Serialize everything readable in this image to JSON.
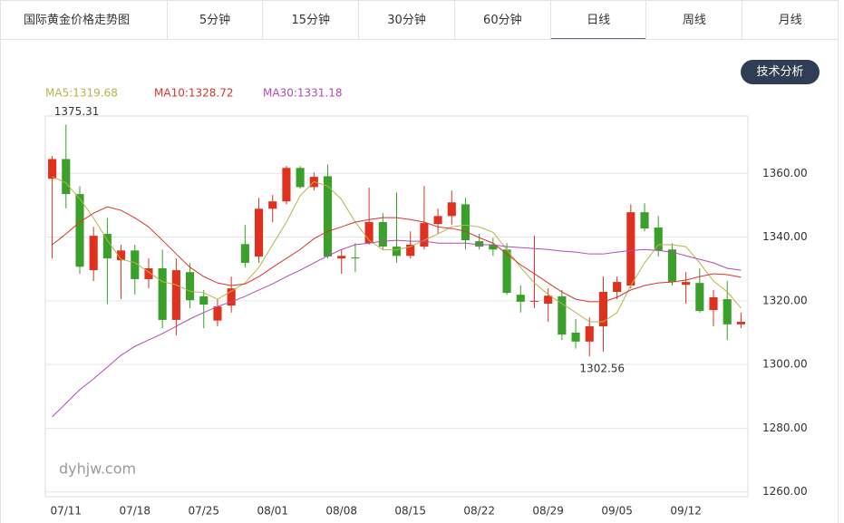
{
  "header_title": "国际黄金价格走势图",
  "tabs": [
    "5分钟",
    "15分钟",
    "30分钟",
    "60分钟",
    "日线",
    "周线",
    "月线"
  ],
  "button": "技术分析",
  "watermark": "dyhjw.com",
  "chart_data": {
    "type": "candlestick",
    "categories": [
      null,
      "07/11",
      null,
      null,
      null,
      null,
      "07/18",
      null,
      null,
      null,
      null,
      "07/25",
      null,
      null,
      null,
      null,
      "08/01",
      null,
      null,
      null,
      null,
      "08/08",
      null,
      null,
      null,
      null,
      "08/15",
      null,
      null,
      null,
      null,
      "08/22",
      null,
      null,
      null,
      null,
      "08/29",
      null,
      null,
      null,
      null,
      "09/05",
      null,
      null,
      null,
      null,
      "09/12",
      null,
      null,
      null,
      null
    ],
    "open": [
      1358.3,
      1364.5,
      1353.5,
      1329.6,
      1341,
      1332.7,
      1335.8,
      1326.8,
      1330.2,
      1314,
      1329,
      1321.4,
      1313.8,
      1318.5,
      1337.8,
      1333.9,
      1348.9,
      1351.2,
      1361.7,
      1355.7,
      1359.1,
      1333.3,
      1333.6,
      1338.1,
      1344.7,
      1337,
      1334.1,
      1337,
      1344.1,
      1346.6,
      1350.3,
      1338.7,
      1337.6,
      1336.1,
      1321.9,
      1319.7,
      1319.1,
      1321.4,
      1310,
      1307.2,
      1312,
      1322.8,
      1324.8,
      1347.8,
      1343,
      1336.1,
      1325,
      1325.6,
      1317.1,
      1320.5,
      1312.6
    ],
    "high": [
      1365.4,
      1375.31,
      1356,
      1343.2,
      1346,
      1337.6,
      1337.6,
      1333.3,
      1336.1,
      1333.3,
      1331.9,
      1323.4,
      1320.5,
      1327.6,
      1343.8,
      1352.3,
      1353.2,
      1362.3,
      1362.3,
      1360.3,
      1362.8,
      1336.1,
      1338.1,
      1355.5,
      1347.5,
      1354,
      1341.8,
      1356,
      1348.9,
      1354.6,
      1352.3,
      1341,
      1339.8,
      1338.1,
      1324.8,
      1340.4,
      1323.9,
      1323.4,
      1314.3,
      1314.8,
      1327.6,
      1327.6,
      1350.3,
      1350.6,
      1346.6,
      1338.1,
      1329,
      1330.2,
      1323.4,
      1326.2,
      1316.3
    ],
    "low": [
      1333.3,
      1349,
      1328.5,
      1326.2,
      1319,
      1320.5,
      1322,
      1323.9,
      1311.4,
      1309.1,
      1317.7,
      1311.4,
      1312,
      1316.3,
      1330.5,
      1331.9,
      1344.7,
      1350.3,
      1355.2,
      1354.6,
      1333.3,
      1328.5,
      1329,
      1337.6,
      1336.1,
      1331.9,
      1333.3,
      1336.1,
      1341,
      1343.8,
      1336.1,
      1336.1,
      1334.1,
      1321.9,
      1316.3,
      1317.7,
      1313.4,
      1307.7,
      1305,
      1302.56,
      1304,
      1320.5,
      1323.9,
      1341.8,
      1333.9,
      1324.8,
      1319.1,
      1316.3,
      1312,
      1307.7,
      1311.4
    ],
    "close": [
      1364.5,
      1353.5,
      1330.7,
      1340.4,
      1333.3,
      1335.8,
      1326.8,
      1330.2,
      1314,
      1329.6,
      1320.2,
      1318.8,
      1318.2,
      1323.9,
      1331.9,
      1348.9,
      1351.2,
      1361.7,
      1355.7,
      1358.9,
      1333.9,
      1334.1,
      1333.3,
      1344.7,
      1337,
      1334.1,
      1337.6,
      1344.4,
      1346.6,
      1350.9,
      1339,
      1337,
      1336.1,
      1322.5,
      1319.7,
      1320,
      1321.6,
      1309.4,
      1307.2,
      1312,
      1322.8,
      1325.9,
      1347.8,
      1342.7,
      1335.8,
      1325.9,
      1325.9,
      1316.8,
      1321.1,
      1312.6,
      1313.4
    ],
    "up_color": "#e0301e",
    "down_color": "#3aa02b",
    "series": [
      {
        "name": "MA5:1319.68",
        "color": "#b8b44a",
        "values": [
          1359,
          1357,
          1352,
          1346,
          1339,
          1333,
          1332,
          1329,
          1326,
          1325,
          1323,
          1322.5,
          1320.5,
          1323,
          1325.6,
          1330.5,
          1337.6,
          1344.7,
          1353,
          1357.4,
          1356,
          1351.8,
          1344.7,
          1339,
          1336,
          1336,
          1337,
          1339,
          1341,
          1343.2,
          1343.8,
          1343.2,
          1341.5,
          1336.1,
          1330.5,
          1325.6,
          1322,
          1319.1,
          1316.3,
          1313.4,
          1313.4,
          1316.3,
          1324.8,
          1331.9,
          1337.6,
          1337.6,
          1337,
          1331.9,
          1326.2,
          1322.8,
          1317.7
        ]
      },
      {
        "name": "MA10:1328.72",
        "color": "#d9352b",
        "values": [
          1337.6,
          1341,
          1344.7,
          1347.5,
          1349.5,
          1348.4,
          1346,
          1343.2,
          1339,
          1334.7,
          1330.5,
          1327.6,
          1325.6,
          1324.8,
          1325.3,
          1327.6,
          1330.5,
          1333.3,
          1336.1,
          1339.5,
          1341.8,
          1343.2,
          1344.7,
          1345.5,
          1346.1,
          1346.1,
          1345.5,
          1344.7,
          1343.2,
          1342.7,
          1341.8,
          1339.8,
          1338.1,
          1334.7,
          1331.3,
          1328.5,
          1325.6,
          1322.8,
          1320.5,
          1319.7,
          1319.7,
          1321.1,
          1323.4,
          1324.8,
          1325.6,
          1325.9,
          1326.5,
          1327.6,
          1328.5,
          1328.2,
          1327.4
        ]
      },
      {
        "name": "MA30:1331.18",
        "color": "#b44bb5",
        "values": [
          1283.6,
          1287.8,
          1292.1,
          1295.5,
          1299.2,
          1302.9,
          1305.7,
          1307.7,
          1309.7,
          1312,
          1314.3,
          1316.3,
          1318.2,
          1319.7,
          1321.4,
          1323.4,
          1325.3,
          1327.6,
          1329.6,
          1331.9,
          1334.1,
          1336.1,
          1337.6,
          1338.1,
          1338.7,
          1339,
          1338.7,
          1338.7,
          1338.1,
          1338.1,
          1338.1,
          1337.6,
          1337.6,
          1337,
          1336.7,
          1336.4,
          1336.1,
          1335.6,
          1335.3,
          1334.7,
          1334.7,
          1335.3,
          1335.8,
          1336.1,
          1335.8,
          1335.3,
          1334.1,
          1333,
          1331.9,
          1330.2,
          1329.6
        ]
      }
    ],
    "annotations": [
      "1375.31",
      "1302.56"
    ],
    "ylim": [
      1258.5,
      1378
    ],
    "yticks": [
      {
        "value": 1260,
        "label": "1260.00"
      },
      {
        "value": 1280,
        "label": "1280.00"
      },
      {
        "value": 1300,
        "label": "1300.00"
      },
      {
        "value": 1320,
        "label": "1320.00"
      },
      {
        "value": 1340,
        "label": "1340.00"
      },
      {
        "value": 1360,
        "label": "1360.00"
      }
    ],
    "grid": true
  }
}
